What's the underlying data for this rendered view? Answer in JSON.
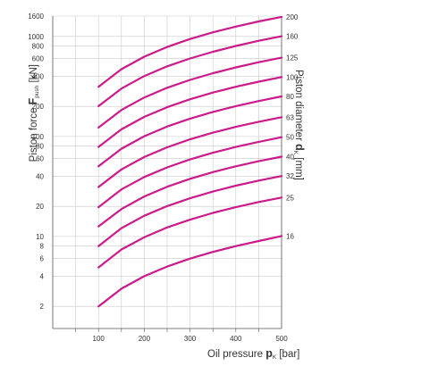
{
  "chart_data": {
    "type": "line",
    "xlabel": {
      "pre": "Oil pressure ",
      "bold": "p",
      "sub": "K",
      "post": " [bar]"
    },
    "ylabel": {
      "pre": "Piston force ",
      "bold": "F",
      "sub": "push",
      "post": " [kN]"
    },
    "y2label": {
      "pre": "Piston diameter ",
      "bold": "d",
      "sub": "K",
      "post": " [mm]"
    },
    "xlim": [
      0,
      500
    ],
    "ylim": [
      1.2,
      1600
    ],
    "yscale": "log",
    "grid": true,
    "x_ticks": [
      100,
      200,
      300,
      400,
      500
    ],
    "y_ticks": [
      2,
      4,
      6,
      8,
      10,
      20,
      40,
      60,
      80,
      100,
      200,
      400,
      600,
      800,
      1000,
      1600
    ],
    "x": [
      100,
      150,
      200,
      250,
      300,
      350,
      400,
      450,
      500
    ],
    "series": [
      {
        "name": "16",
        "values": [
          2.0,
          3.0,
          4.0,
          5.0,
          6.0,
          7.0,
          8.0,
          9.0,
          10.1
        ]
      },
      {
        "name": "25",
        "values": [
          4.9,
          7.4,
          9.8,
          12.3,
          14.7,
          17.2,
          19.6,
          22.1,
          24.5
        ]
      },
      {
        "name": "32",
        "values": [
          8.0,
          12.1,
          16.1,
          20.1,
          24.1,
          28.1,
          32.2,
          36.2,
          40.2
        ]
      },
      {
        "name": "40",
        "values": [
          12.6,
          18.8,
          25.1,
          31.4,
          37.7,
          44.0,
          50.3,
          56.5,
          62.8
        ]
      },
      {
        "name": "50",
        "values": [
          19.6,
          29.5,
          39.3,
          49.1,
          58.9,
          68.7,
          78.5,
          88.4,
          98.2
        ]
      },
      {
        "name": "63",
        "values": [
          31.2,
          46.8,
          62.3,
          77.9,
          93.5,
          109.1,
          124.7,
          140.3,
          155.9
        ]
      },
      {
        "name": "80",
        "values": [
          50.3,
          75.4,
          100.5,
          125.7,
          150.8,
          175.9,
          201.1,
          226.2,
          251.3
        ]
      },
      {
        "name": "100",
        "values": [
          78.5,
          117.8,
          157.1,
          196.3,
          235.6,
          274.9,
          314.2,
          353.4,
          392.7
        ]
      },
      {
        "name": "125",
        "values": [
          122.7,
          184.1,
          245.4,
          306.8,
          368.2,
          429.5,
          490.9,
          552.2,
          613.6
        ]
      },
      {
        "name": "160",
        "values": [
          201.1,
          301.6,
          402.1,
          502.7,
          603.2,
          703.7,
          804.2,
          904.8,
          1005.3
        ]
      },
      {
        "name": "200",
        "values": [
          314.2,
          471.2,
          628.3,
          785.4,
          942.5,
          1099.6,
          1256.6,
          1413.7,
          1570.8
        ]
      }
    ],
    "line_color": "#cc1a8a"
  }
}
